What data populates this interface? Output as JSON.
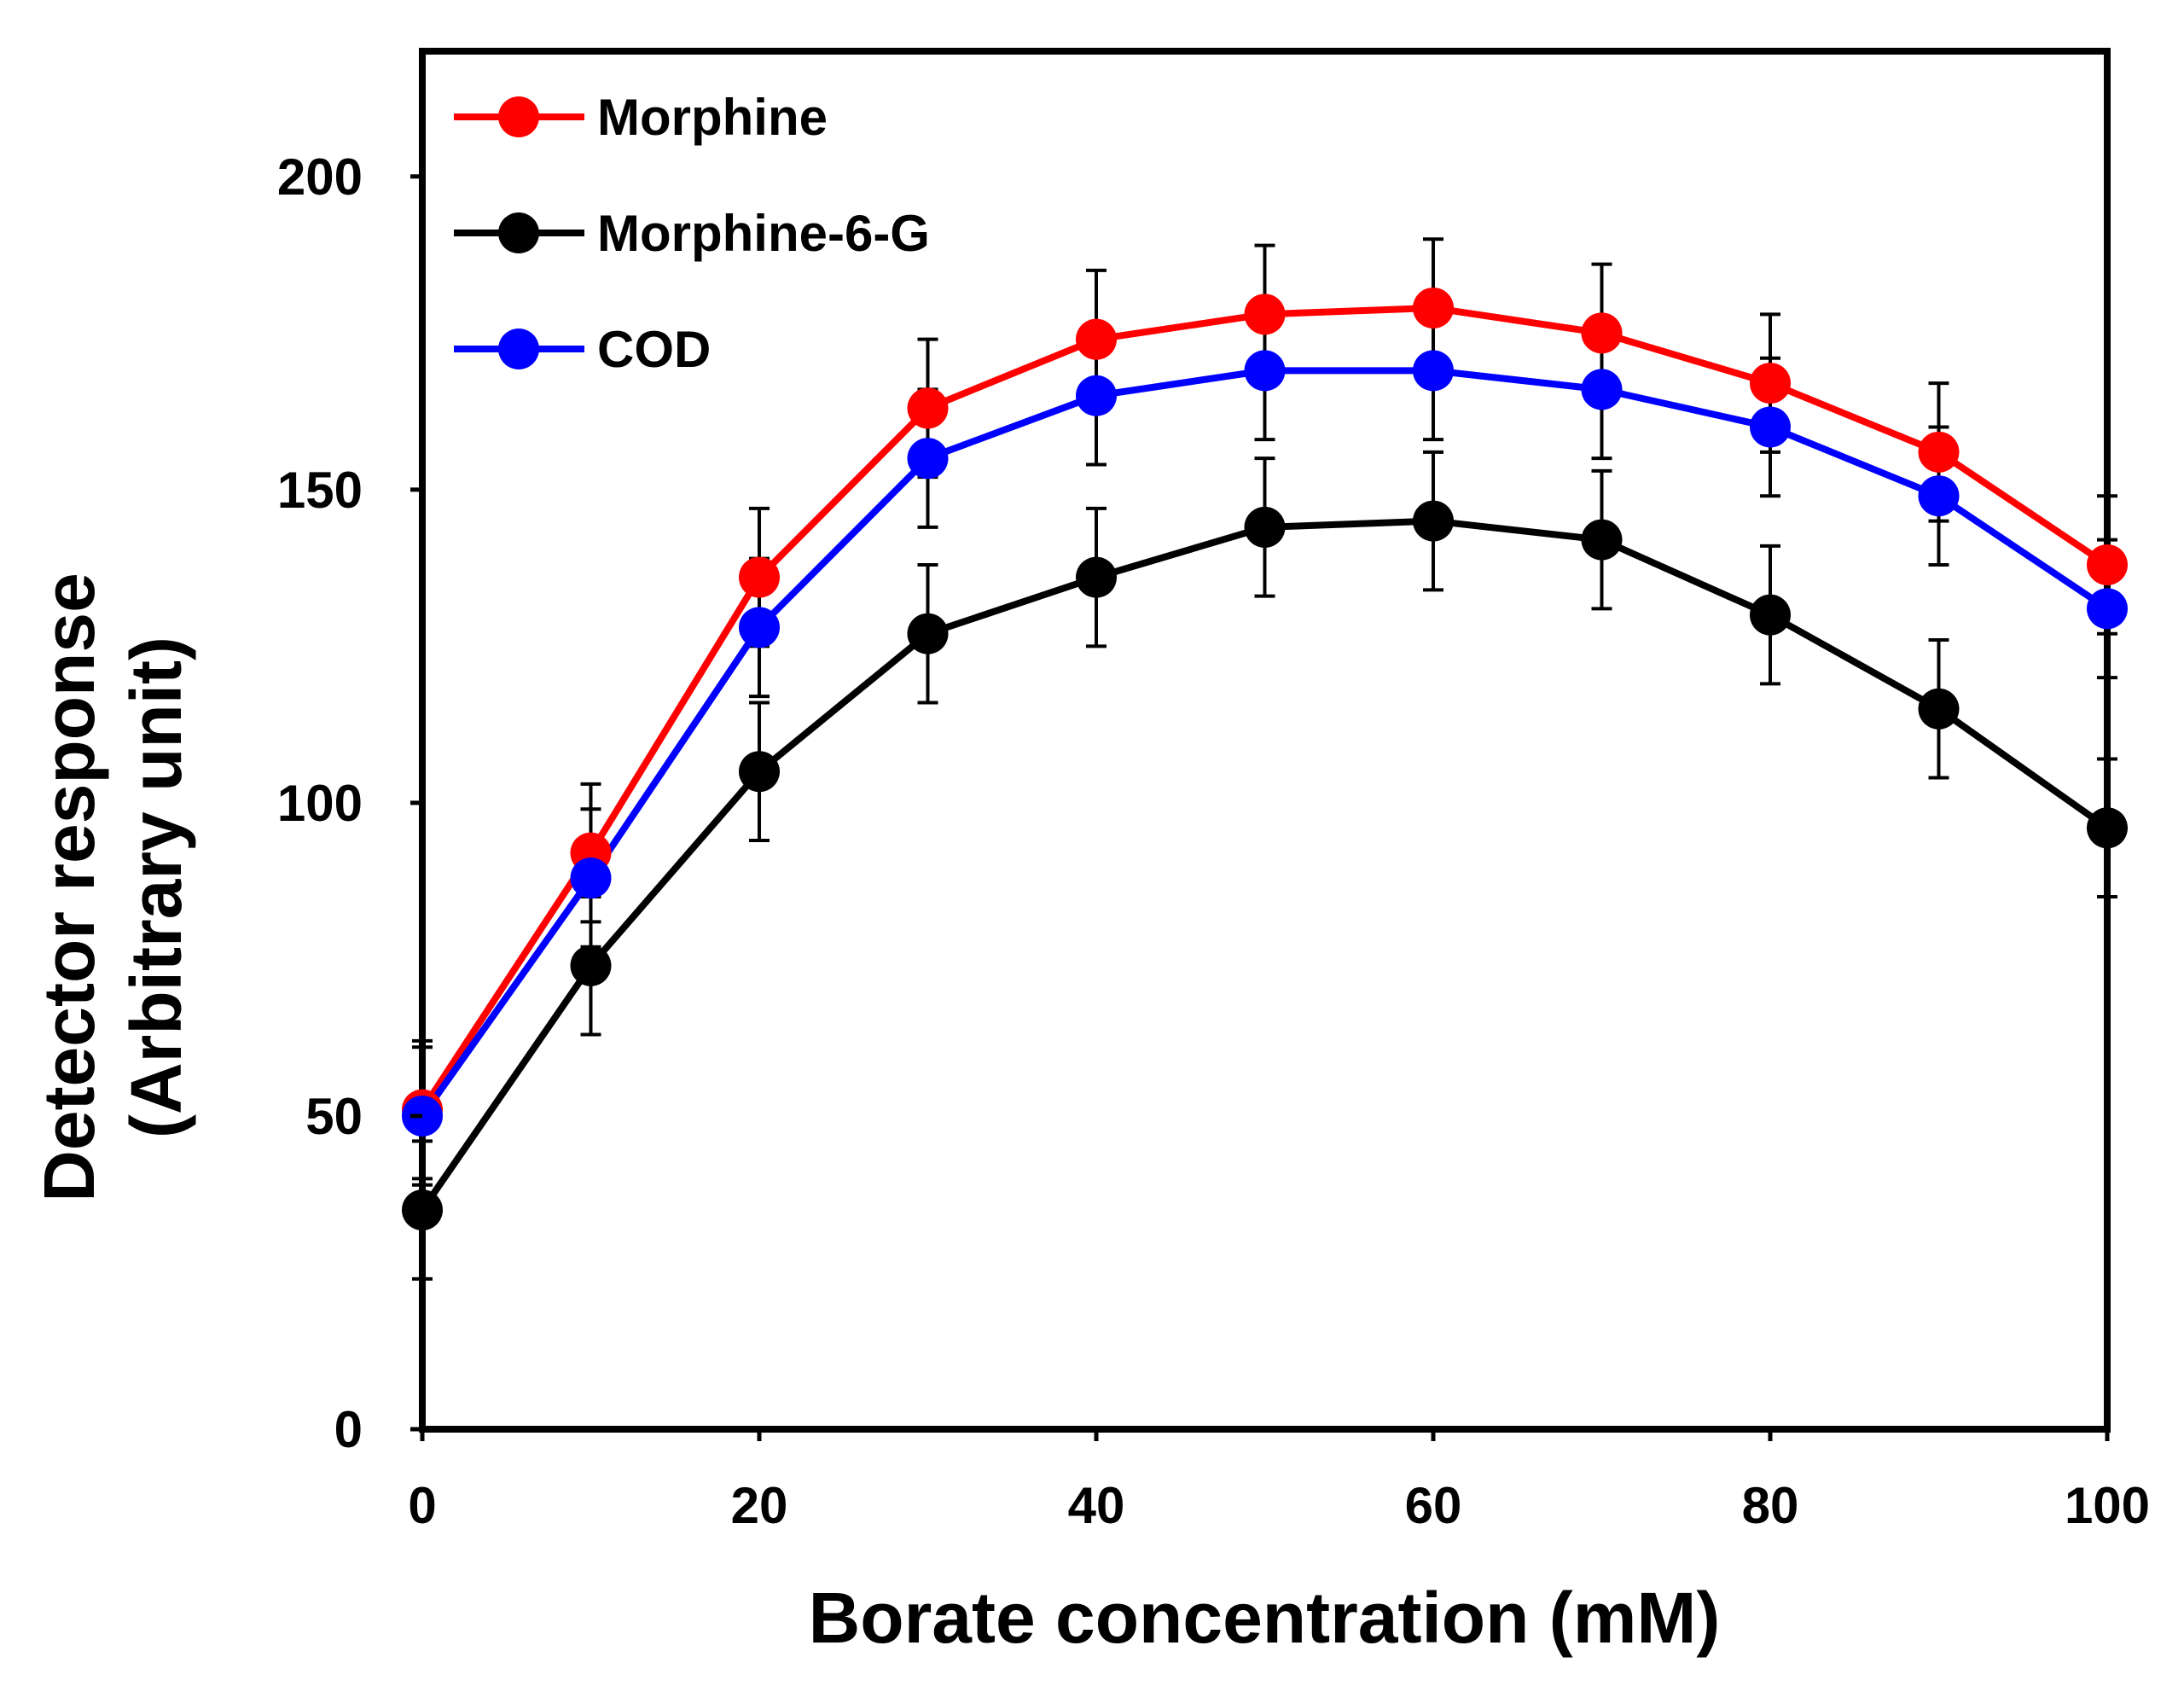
{
  "chart_data": {
    "type": "line",
    "title": "",
    "xlabel": "Borate concentration (mM)",
    "ylabel_line1": "Detector response",
    "ylabel_line2": "(Arbitrary unit)",
    "xlim": [
      0,
      100
    ],
    "ylim": [
      0,
      220
    ],
    "xticks": [
      0,
      20,
      40,
      60,
      80,
      100
    ],
    "yticks": [
      0,
      50,
      100,
      150,
      200
    ],
    "grid": false,
    "legend_position": "top-left",
    "x": [
      0,
      10,
      20,
      30,
      40,
      50,
      60,
      70,
      80,
      90,
      100
    ],
    "series": [
      {
        "name": "Morphine",
        "color": "#ff0000",
        "values": [
          51,
          92,
          136,
          163,
          174,
          178,
          179,
          175,
          167,
          156,
          138
        ],
        "errors": [
          11,
          11,
          11,
          11,
          11,
          11,
          11,
          11,
          11,
          11,
          11
        ]
      },
      {
        "name": "Morphine-6-G",
        "color": "#000000",
        "values": [
          35,
          74,
          105,
          127,
          136,
          144,
          145,
          142,
          130,
          115,
          96
        ],
        "errors": [
          11,
          11,
          11,
          11,
          11,
          11,
          11,
          11,
          11,
          11,
          11
        ]
      },
      {
        "name": "COD",
        "color": "#0000ff",
        "values": [
          50,
          88,
          128,
          155,
          165,
          169,
          169,
          166,
          160,
          149,
          131
        ],
        "errors": [
          11,
          11,
          11,
          11,
          11,
          11,
          11,
          11,
          11,
          11,
          11
        ]
      }
    ]
  }
}
